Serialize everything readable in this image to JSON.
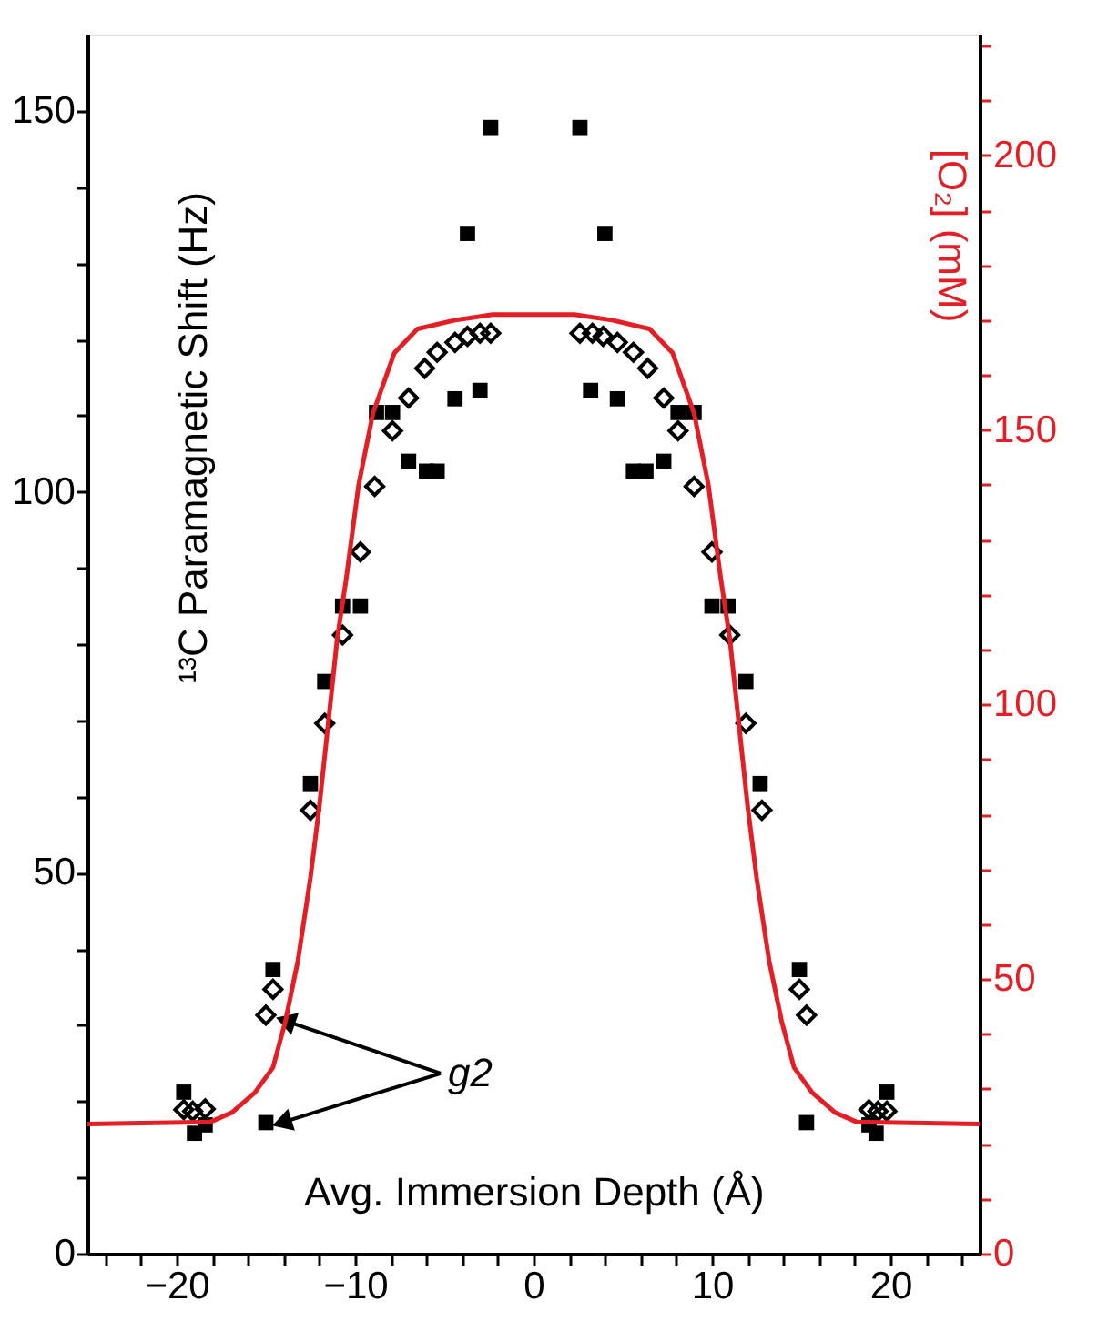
{
  "chart_data": {
    "type": "scatter",
    "xlabel": "Avg. Immersion Depth (Å)",
    "ylabel": "¹³C Paramagnetic Shift (Hz)",
    "y2label": "[O₂] (mM)",
    "xlim": [
      -25,
      25
    ],
    "ylim": [
      0,
      160
    ],
    "y2lim": [
      0,
      222
    ],
    "xticks": [
      {
        "value": -24,
        "label": null
      },
      {
        "value": -22,
        "label": null
      },
      -20,
      {
        "value": -18,
        "label": null
      },
      {
        "value": -16,
        "label": null
      },
      {
        "value": -14,
        "label": null
      },
      {
        "value": -12,
        "label": null
      },
      -10,
      {
        "value": -8,
        "label": null
      },
      {
        "value": -6,
        "label": null
      },
      {
        "value": -4,
        "label": null
      },
      {
        "value": -2,
        "label": null
      },
      0,
      {
        "value": 2,
        "label": null
      },
      {
        "value": 4,
        "label": null
      },
      {
        "value": 6,
        "label": null
      },
      {
        "value": 8,
        "label": null
      },
      10,
      {
        "value": 12,
        "label": null
      },
      {
        "value": 14,
        "label": null
      },
      {
        "value": 16,
        "label": null
      },
      {
        "value": 18,
        "label": null
      },
      20,
      {
        "value": 22,
        "label": null
      },
      {
        "value": 24,
        "label": null
      }
    ],
    "yticks": [
      0,
      {
        "value": 10,
        "label": null
      },
      {
        "value": 20,
        "label": null
      },
      {
        "value": 30,
        "label": null
      },
      {
        "value": 40,
        "label": null
      },
      50,
      {
        "value": 60,
        "label": null
      },
      {
        "value": 70,
        "label": null
      },
      {
        "value": 80,
        "label": null
      },
      {
        "value": 90,
        "label": null
      },
      100,
      {
        "value": 110,
        "label": null
      },
      {
        "value": 120,
        "label": null
      },
      {
        "value": 130,
        "label": null
      },
      {
        "value": 140,
        "label": null
      },
      150
    ],
    "y2ticks": [
      0,
      {
        "value": 10,
        "label": null
      },
      {
        "value": 20,
        "label": null
      },
      {
        "value": 30,
        "label": null
      },
      {
        "value": 40,
        "label": null
      },
      50,
      {
        "value": 60,
        "label": null
      },
      {
        "value": 70,
        "label": null
      },
      {
        "value": 80,
        "label": null
      },
      {
        "value": 90,
        "label": null
      },
      100,
      {
        "value": 110,
        "label": null
      },
      {
        "value": 120,
        "label": null
      },
      {
        "value": 130,
        "label": null
      },
      {
        "value": 140,
        "label": null
      },
      150,
      {
        "value": 160,
        "label": null
      },
      {
        "value": 170,
        "label": null
      },
      {
        "value": 180,
        "label": null
      },
      {
        "value": 190,
        "label": null
      },
      200,
      {
        "value": 210,
        "label": null
      },
      {
        "value": 220,
        "label": null
      }
    ],
    "grid": false,
    "series": [
      {
        "marker": "square",
        "color": "#000000",
        "x": [
          -19.6,
          -19.0,
          -18.4,
          -15.0,
          -14.6,
          -12.5,
          -11.7,
          -10.7,
          -9.7,
          -8.8,
          -7.9,
          -7.0,
          -6.0,
          -5.4,
          -4.4,
          -3.7,
          -3.0,
          -2.4,
          2.6,
          3.2,
          4.0,
          4.7,
          5.6,
          6.3,
          7.3,
          8.1,
          9.0,
          10.0,
          10.9,
          11.9,
          12.7,
          14.9,
          15.3,
          18.8,
          19.2,
          19.8
        ],
        "values": [
          21.2,
          15.8,
          16.9,
          17.2,
          37.3,
          61.7,
          75.1,
          85,
          85,
          110.4,
          110.4,
          104,
          102.7,
          102.7,
          112.2,
          133.9,
          113.3,
          147.8,
          147.8,
          113.3,
          133.9,
          112.2,
          102.7,
          102.7,
          104,
          110.4,
          110.4,
          85,
          85,
          75.1,
          61.7,
          37.3,
          17.2,
          16.9,
          15.8,
          21.2
        ]
      },
      {
        "marker": "diamond",
        "color": "#000000",
        "x": [
          -19.6,
          -19.1,
          -18.4,
          -15.0,
          -14.6,
          -12.5,
          -11.7,
          -10.7,
          -9.7,
          -8.9,
          -7.9,
          -7.0,
          -6.1,
          -5.4,
          -4.4,
          -3.7,
          -3.0,
          -2.4,
          2.6,
          3.3,
          3.9,
          4.7,
          5.6,
          6.4,
          7.3,
          8.1,
          9.0,
          10.0,
          11.0,
          11.9,
          12.8,
          14.9,
          15.3,
          18.8,
          19.3,
          19.8
        ],
        "values": [
          18.9,
          18.7,
          19.0,
          31.3,
          34.7,
          58.2,
          69.6,
          81.2,
          92.1,
          100.7,
          108.0,
          112.3,
          116.2,
          118.3,
          119.6,
          120.4,
          120.8,
          120.8,
          120.8,
          120.8,
          120.4,
          119.6,
          118.3,
          116.2,
          112.3,
          108.0,
          100.7,
          92.1,
          81.2,
          69.6,
          58.2,
          34.7,
          31.3,
          18.9,
          18.7,
          18.7
        ]
      },
      {
        "type": "line",
        "axis": "y2",
        "marker": "none",
        "line_style": "solid",
        "color": "#e31e24",
        "x": [
          -25,
          -18.1,
          -16.9,
          -15.6,
          -14.6,
          -13.9,
          -13.2,
          -12.5,
          -12.0,
          -11.5,
          -11.0,
          -10.5,
          -9.8,
          -9.0,
          -7.8,
          -6.5,
          -4.4,
          -2.3,
          0,
          2.3,
          4.4,
          6.5,
          7.8,
          9.0,
          9.8,
          10.5,
          11.0,
          11.5,
          12.0,
          12.5,
          13.2,
          13.9,
          14.6,
          15.6,
          16.9,
          18.1,
          25
        ],
        "values": [
          23.6,
          24,
          25.7,
          29.4,
          33.9,
          42.4,
          53.4,
          68.5,
          81.5,
          96.7,
          112,
          122.8,
          140,
          153,
          164,
          168.4,
          170,
          171,
          171,
          171,
          170,
          168.4,
          164,
          153,
          140,
          122.8,
          112,
          96.7,
          81.5,
          68.5,
          53.4,
          42.4,
          33.9,
          29.4,
          25.7,
          24,
          23.6
        ]
      }
    ],
    "annotations": [
      {
        "text": "g2",
        "x": -15.0,
        "y": 17.2
      }
    ]
  }
}
